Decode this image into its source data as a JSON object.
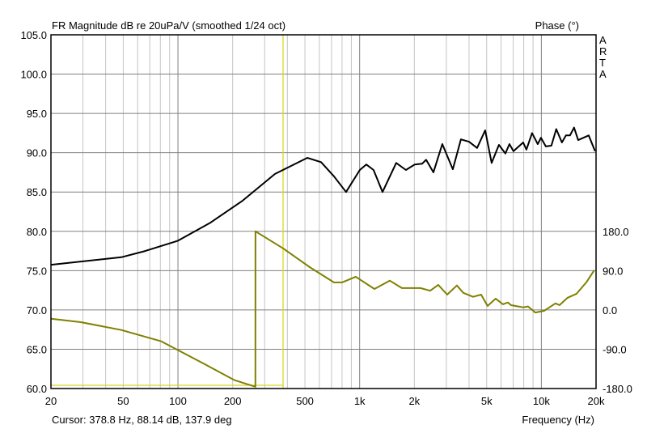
{
  "chart_data": {
    "type": "line",
    "title": "FR Magnitude dB re 20uPa/V (smoothed 1/24 oct)",
    "right_title": "Phase (°)",
    "brand": "ARTA",
    "xlabel": "Frequency (Hz)",
    "cursor_text": "Cursor: 378.8 Hz, 88.14 dB, 137.9 deg",
    "cursor": {
      "freq": 378.8,
      "db": 88.14,
      "phase": 137.9
    },
    "xscale": "log",
    "xlim": [
      20,
      20000
    ],
    "ylim": [
      60,
      105
    ],
    "y2lim": [
      -180,
      180
    ],
    "grid": true,
    "x_ticks": [
      {
        "v": 20,
        "label": "20"
      },
      {
        "v": 50,
        "label": "50"
      },
      {
        "v": 100,
        "label": "100"
      },
      {
        "v": 200,
        "label": "200"
      },
      {
        "v": 500,
        "label": "500"
      },
      {
        "v": 1000,
        "label": "1k"
      },
      {
        "v": 2000,
        "label": "2k"
      },
      {
        "v": 5000,
        "label": "5k"
      },
      {
        "v": 10000,
        "label": "10k"
      },
      {
        "v": 20000,
        "label": "20k"
      }
    ],
    "y_ticks": [
      "105.0",
      "100.0",
      "95.0",
      "90.0",
      "85.0",
      "80.0",
      "75.0",
      "70.0",
      "65.0",
      "60.0"
    ],
    "y2_ticks": [
      {
        "v": 180,
        "label": "180.0"
      },
      {
        "v": 90,
        "label": "90.0"
      },
      {
        "v": 0,
        "label": "0.0"
      },
      {
        "v": -90,
        "label": "-90.0"
      },
      {
        "v": -180,
        "label": "-180.0"
      }
    ],
    "series": [
      {
        "name": "Magnitude (dB)",
        "axis": "left",
        "color": "#000000",
        "x": [
          20,
          48.8,
          66,
          100,
          151,
          227,
          342,
          515,
          613,
          722,
          842,
          1002,
          1088,
          1193,
          1336,
          1590,
          1798,
          2012,
          2206,
          2322,
          2546,
          2850,
          3256,
          3608,
          3996,
          4428,
          4906,
          5326,
          5840,
          6338,
          6672,
          7022,
          7940,
          8272,
          8888,
          9550,
          9950,
          10580,
          11360,
          12080,
          12980,
          13660,
          14380,
          15140,
          15940,
          18220,
          19760
        ],
        "y": [
          75.75,
          76.7,
          77.5,
          78.8,
          81.1,
          83.9,
          87.3,
          89.35,
          88.8,
          87.0,
          85.0,
          87.8,
          88.5,
          87.8,
          85.0,
          88.7,
          87.8,
          88.5,
          88.6,
          89.1,
          87.5,
          91.1,
          87.9,
          91.7,
          91.4,
          90.6,
          92.85,
          88.7,
          91.0,
          89.9,
          91.1,
          90.2,
          91.3,
          90.4,
          92.5,
          91.1,
          91.9,
          90.8,
          90.9,
          93.0,
          91.3,
          92.2,
          92.2,
          93.2,
          91.6,
          92.2,
          90.2
        ]
      },
      {
        "name": "Phase (deg)",
        "axis": "right",
        "color": "#808000",
        "x": [
          20,
          29.2,
          48.8,
          81,
          136,
          205,
          266.9,
          267,
          379,
          531,
          722,
          800,
          952,
          1206,
          1464,
          1707,
          2161,
          2444,
          2707,
          3030,
          3428,
          3720,
          4208,
          4660,
          5060,
          5606,
          6146,
          6536,
          6808,
          7940,
          8444,
          9262,
          10360,
          11960,
          12590,
          13960,
          15620,
          17660,
          19550
        ],
        "y": [
          -20,
          -28,
          -46,
          -72,
          -121,
          -161,
          -176,
          180,
          141,
          98,
          63,
          63,
          76,
          48,
          67,
          50,
          50,
          44,
          57.5,
          35,
          56,
          39,
          30,
          35,
          9,
          26,
          13,
          17,
          11,
          6,
          8,
          -6,
          -2,
          15,
          11,
          28,
          37,
          63,
          91
        ]
      }
    ]
  }
}
